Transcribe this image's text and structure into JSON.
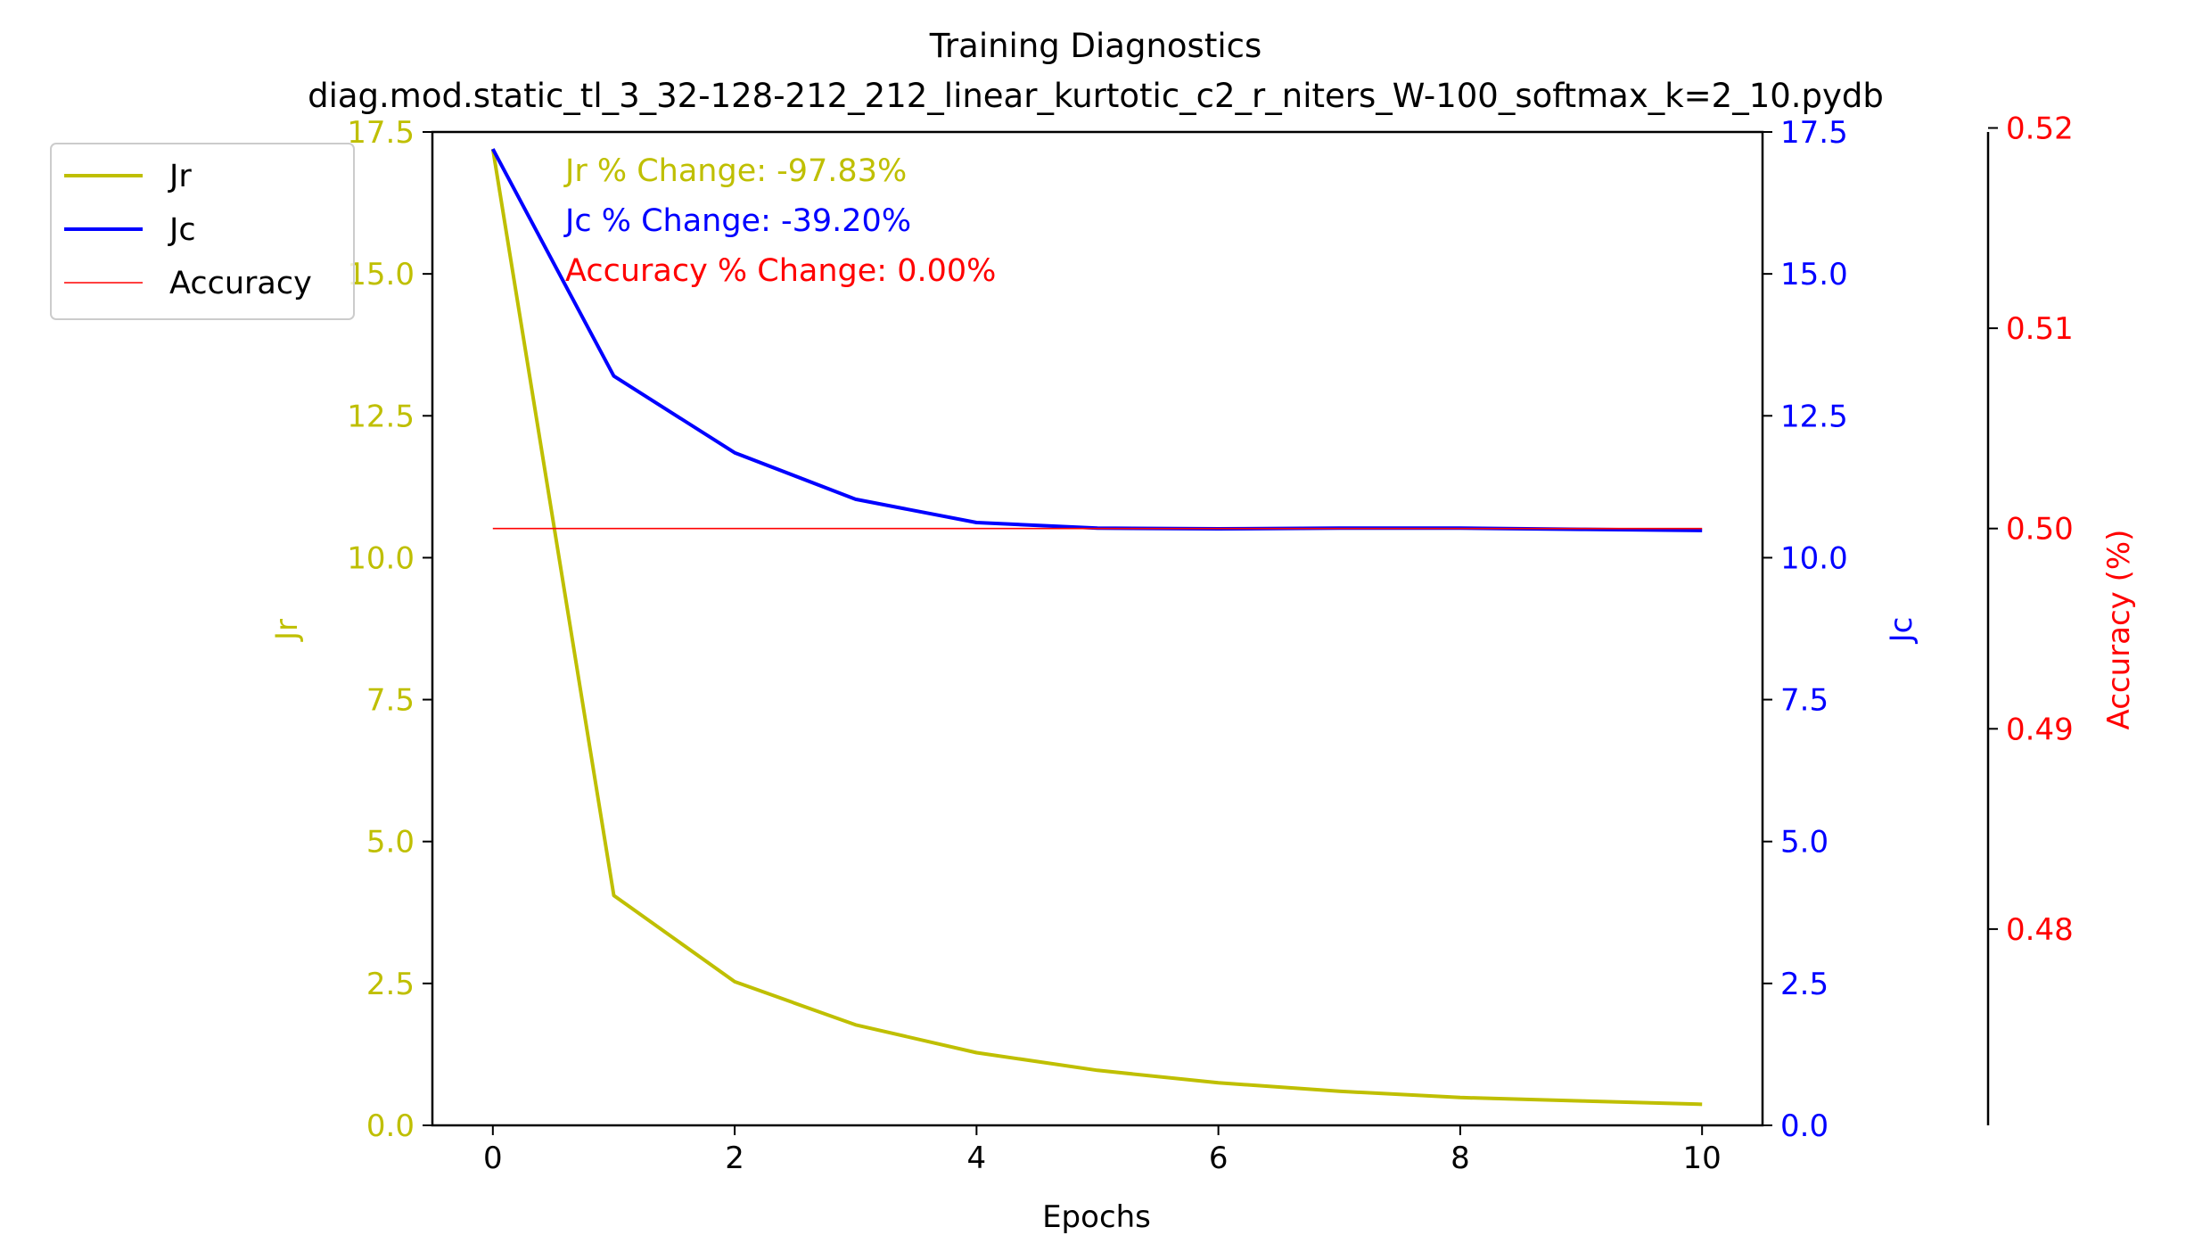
{
  "chart_data": {
    "type": "line",
    "title": "Training Diagnostics",
    "subtitle": "diag.mod.static_tl_3_32-128-212_212_linear_kurtotic_c2_r_niters_W-100_softmax_k=2_10.pydb",
    "xlabel": "Epochs",
    "xlim": [
      -0.5,
      10.5
    ],
    "xticks": [
      0,
      2,
      4,
      6,
      8,
      10
    ],
    "x": [
      0,
      1,
      2,
      3,
      4,
      5,
      6,
      7,
      8,
      9,
      10
    ],
    "axes": {
      "left": {
        "label": "Jr",
        "color": "#bfbf00",
        "ylim": [
          0,
          17.5
        ],
        "ticks": [
          "0.0",
          "2.5",
          "5.0",
          "7.5",
          "10.0",
          "12.5",
          "15.0",
          "17.5"
        ]
      },
      "right": {
        "label": "Jc",
        "color": "#0000ff",
        "ylim": [
          0,
          17.5
        ],
        "ticks": [
          "0.0",
          "2.5",
          "5.0",
          "7.5",
          "10.0",
          "12.5",
          "15.0",
          "17.5"
        ]
      },
      "right2": {
        "label": "Accuracy (%)",
        "color": "#ff0000",
        "ylim": [
          0.4702,
          0.5198
        ],
        "ticks": [
          "0.48",
          "0.49",
          "0.50",
          "0.51",
          "0.52"
        ]
      }
    },
    "series": [
      {
        "name": "Jr",
        "axis": "left",
        "color": "#bfbf00",
        "values": [
          17.2,
          4.05,
          2.53,
          1.77,
          1.28,
          0.97,
          0.75,
          0.6,
          0.49,
          0.43,
          0.37
        ]
      },
      {
        "name": "Jc",
        "axis": "right",
        "color": "#0000ff",
        "values": [
          17.2,
          13.2,
          11.85,
          11.03,
          10.62,
          10.52,
          10.51,
          10.52,
          10.52,
          10.5,
          10.48
        ]
      },
      {
        "name": "Accuracy",
        "axis": "right2",
        "color": "#ff0000",
        "values": [
          0.5,
          0.5,
          0.5,
          0.5,
          0.5,
          0.5,
          0.5,
          0.5,
          0.5,
          0.5,
          0.5
        ]
      }
    ],
    "annotations": [
      {
        "text": "Jr % Change: -97.83%",
        "color": "#bfbf00"
      },
      {
        "text": "Jc % Change: -39.20%",
        "color": "#0000ff"
      },
      {
        "text": "Accuracy % Change: 0.00%",
        "color": "#ff0000"
      }
    ],
    "legend": {
      "position": "top-left",
      "entries": [
        {
          "label": "Jr",
          "color": "#bfbf00"
        },
        {
          "label": "Jc",
          "color": "#0000ff"
        },
        {
          "label": "Accuracy",
          "color": "#ff0000"
        }
      ]
    }
  }
}
